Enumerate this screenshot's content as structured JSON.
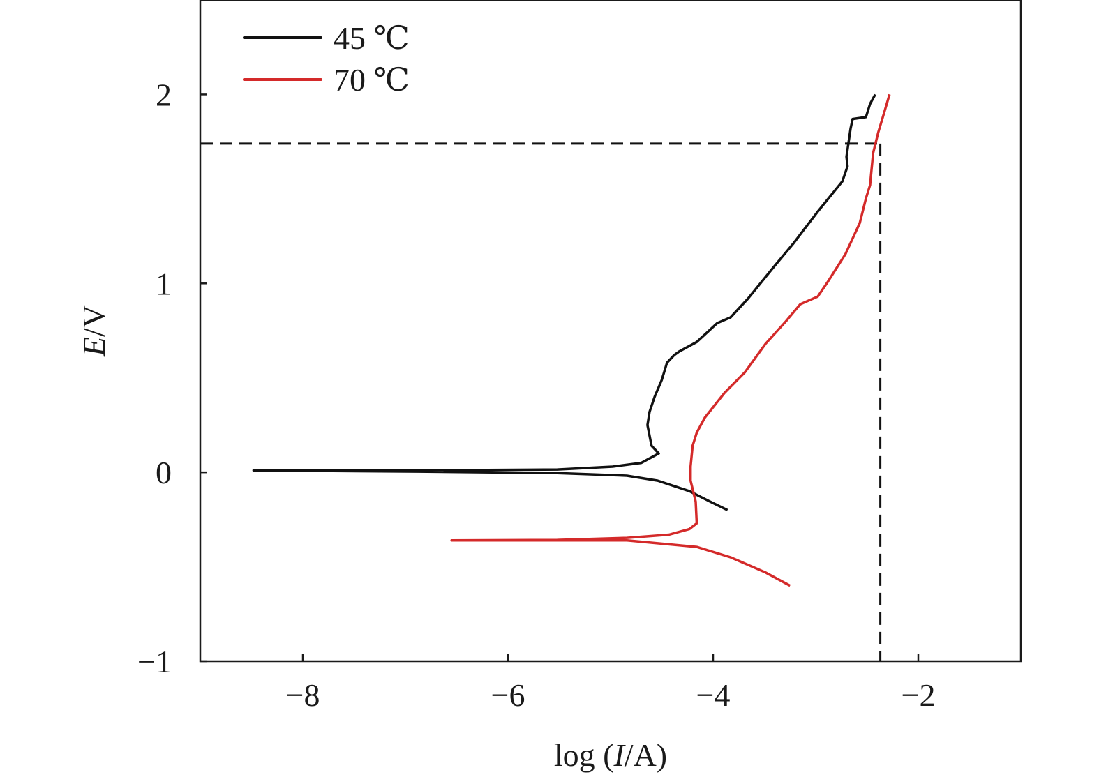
{
  "chart_data": {
    "type": "line",
    "title": "",
    "xlabel_parts": [
      "log (",
      "I",
      "/A)"
    ],
    "ylabel_parts": [
      "E",
      "/V"
    ],
    "xlim": [
      -9,
      -1
    ],
    "ylim": [
      -1,
      2.5
    ],
    "xticks": [
      -8,
      -6,
      -4,
      -2
    ],
    "yticks": [
      -1,
      0,
      1,
      2
    ],
    "xtick_labels": [
      "−8",
      "−6",
      "−4",
      "−2"
    ],
    "ytick_labels": [
      "−1",
      "0",
      "1",
      "2"
    ],
    "grid": false,
    "legend_position": "top-left",
    "reference_lines": {
      "horizontal_y": 1.74,
      "vertical_x": -2.37,
      "style": "dashed",
      "color": "#111111"
    },
    "series": [
      {
        "name": "45 ℃",
        "color": "#111111",
        "x": [
          -3.86,
          -4.03,
          -4.23,
          -4.54,
          -4.84,
          -5.52,
          -6.87,
          -8.48,
          -6.87,
          -5.52,
          -4.98,
          -4.7,
          -4.53,
          -4.6,
          -4.64,
          -4.62,
          -4.57,
          -4.5,
          -4.45,
          -4.38,
          -4.33,
          -4.16,
          -3.96,
          -3.83,
          -3.66,
          -3.42,
          -3.22,
          -2.98,
          -2.74,
          -2.69,
          -2.7,
          -2.66,
          -2.64,
          -2.51,
          -2.47,
          -2.42
        ],
        "y": [
          -0.2,
          -0.155,
          -0.1,
          -0.044,
          -0.018,
          -0.004,
          0.004,
          0.01,
          0.01,
          0.015,
          0.03,
          0.05,
          0.1,
          0.14,
          0.25,
          0.32,
          0.4,
          0.49,
          0.58,
          0.62,
          0.64,
          0.69,
          0.79,
          0.82,
          0.92,
          1.08,
          1.21,
          1.38,
          1.54,
          1.62,
          1.67,
          1.82,
          1.87,
          1.88,
          1.95,
          2.0
        ]
      },
      {
        "name": "70 ℃",
        "color": "#d42a2a",
        "x": [
          -3.25,
          -3.49,
          -3.83,
          -4.16,
          -4.84,
          -6.55,
          -5.52,
          -4.84,
          -4.43,
          -4.23,
          -4.16,
          -4.17,
          -4.22,
          -4.22,
          -4.2,
          -4.16,
          -4.08,
          -3.89,
          -3.69,
          -3.49,
          -3.29,
          -3.15,
          -2.98,
          -2.88,
          -2.71,
          -2.57,
          -2.51,
          -2.47,
          -2.44,
          -2.39,
          -2.34,
          -2.28
        ],
        "y": [
          -0.6,
          -0.53,
          -0.45,
          -0.395,
          -0.36,
          -0.36,
          -0.358,
          -0.347,
          -0.33,
          -0.3,
          -0.27,
          -0.155,
          -0.044,
          0.03,
          0.14,
          0.21,
          0.29,
          0.42,
          0.53,
          0.68,
          0.8,
          0.89,
          0.93,
          1.01,
          1.155,
          1.32,
          1.45,
          1.52,
          1.69,
          1.8,
          1.89,
          2.0
        ]
      }
    ]
  }
}
